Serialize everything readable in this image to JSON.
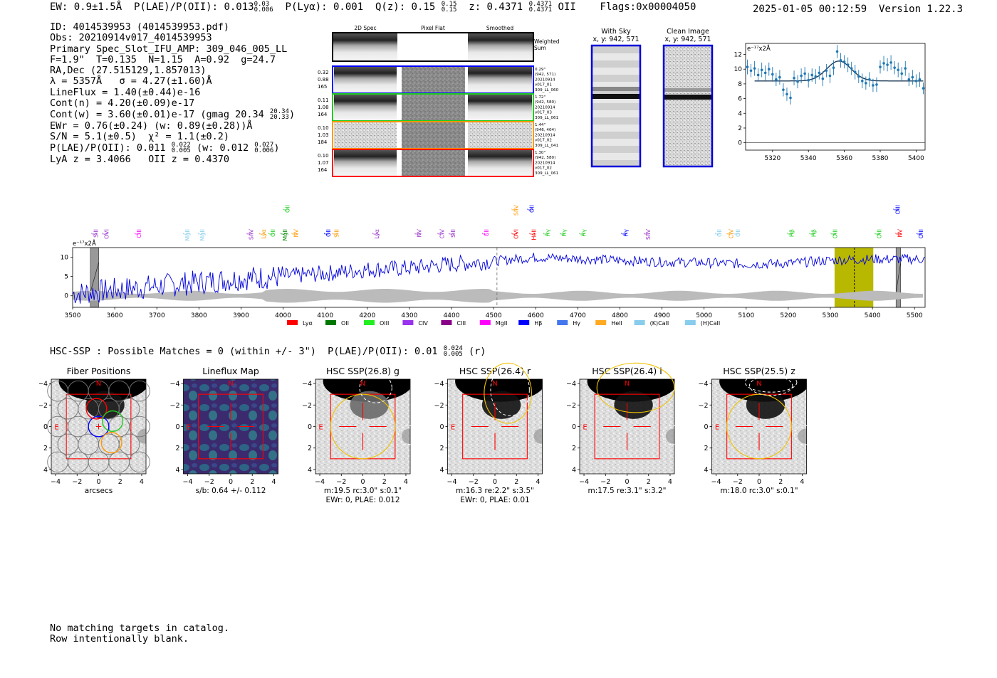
{
  "header": {
    "ew": "EW: 0.9±1.5Å",
    "plae": "P(LAE)/P(OII): 0.013",
    "plae_hi": "0.03",
    "plae_lo": "0.006",
    "plya": "P(Lyα): 0.001",
    "qz": "Q(z): 0.15",
    "qz_hi": "0.15",
    "qz_lo": "0.15",
    "z": "z: 0.4371",
    "z_hi": "0.4371",
    "z_lo": "0.4371",
    "z_line": "OII",
    "flags": "Flags:0x00004050",
    "datetime": "2025-01-05 00:12:59",
    "version": "Version 1.22.3"
  },
  "info": {
    "id": "ID: 4014539953 (4014539953.pdf)",
    "obs": "Obs: 20210914v017_4014539953",
    "primary": "Primary Spec_Slot_IFU_AMP: 309_046_005_LL",
    "params": "F=1.9\"  T=0.135  N=1.15  A=0.92  g=24.7",
    "radec": "RA,Dec (27.515129,1.857013)",
    "lambda": "λ = 5357Å   σ = 4.27(±1.60)Å",
    "lineflux": "LineFlux = 1.40(±0.44)e-16",
    "contn": "Cont(n) = 4.20(±0.09)e-17",
    "contw": "Cont(w) = 3.60(±0.01)e-17 (gmag 20.34",
    "gmag_hi": "20.34",
    "gmag_lo": "20.33",
    "ewr": "EWr = 0.76(±0.24) (w: 0.89(±0.28))Å",
    "sn": "S/N = 5.1(±0.5)  χ² = 1.1(±0.2)",
    "plae2": "P(LAE)/P(OII): 0.011",
    "plae2_hi": "0.022",
    "plae2_lo": "0.005",
    "plae2_w": "(w: 0.012",
    "plae2_w_hi": "0.027",
    "plae2_w_lo": "0.006",
    "lya_z": "LyA z = 3.4066   OII z = 0.4370"
  },
  "cutouts": {
    "col_headers": [
      "2D Spec",
      "Pixel Flat",
      "Smoothed"
    ],
    "weighted_sum": [
      "Weighted",
      "Sum"
    ],
    "rows": [
      {
        "color": "#0000ff",
        "left": [
          "0.32",
          "0.88",
          "165"
        ],
        "right": [
          "0.29\"",
          "(942, 571)",
          "20210914",
          "v017_01",
          "309_LL_060"
        ]
      },
      {
        "color": "#22cc22",
        "left": [
          "0.11",
          "1.08",
          "164"
        ],
        "right": [
          "1.72\"",
          "(942, 580)",
          "20210914",
          "v017_03",
          "309_LL_061"
        ]
      },
      {
        "color": "#ff9900",
        "left": [
          "0.10",
          "1.03",
          "184"
        ],
        "right": [
          "1.44\"",
          "(946, 404)",
          "20210914",
          "v017_02",
          "309_LL_041"
        ]
      },
      {
        "color": "#ff0000",
        "left": [
          "0.10",
          "1.07",
          "164"
        ],
        "right": [
          "1.30\"",
          "(942, 580)",
          "20210914",
          "v017_02",
          "309_LL_061"
        ]
      }
    ],
    "with_sky": [
      "With Sky",
      "x, y: 942, 571"
    ],
    "clean_image": [
      "Clean Image",
      "x, y: 942, 571"
    ]
  },
  "zoom_chart": {
    "type": "scatter",
    "ylabel": "e⁻¹⁷x2Å",
    "xlim": [
      5305,
      5405
    ],
    "ylim": [
      -1,
      13.5
    ],
    "xticks": [
      5320,
      5340,
      5360,
      5380,
      5400
    ],
    "yticks": [
      0,
      2,
      4,
      6,
      8,
      10,
      12
    ],
    "x": [
      5306,
      5308,
      5310,
      5312,
      5314,
      5316,
      5318,
      5320,
      5322,
      5324,
      5326,
      5328,
      5330,
      5332,
      5334,
      5336,
      5338,
      5340,
      5342,
      5344,
      5346,
      5348,
      5350,
      5352,
      5354,
      5356,
      5358,
      5360,
      5362,
      5364,
      5366,
      5368,
      5370,
      5372,
      5374,
      5376,
      5378,
      5380,
      5382,
      5384,
      5386,
      5388,
      5390,
      5392,
      5394,
      5396,
      5398,
      5400,
      5402,
      5404
    ],
    "y": [
      10.3,
      9.8,
      10.1,
      9.2,
      9.9,
      9.5,
      10.0,
      9.3,
      8.6,
      8.9,
      7.2,
      6.6,
      6.1,
      8.8,
      8.3,
      9.1,
      9.4,
      8.5,
      9.2,
      9.0,
      9.5,
      8.7,
      9.8,
      9.1,
      10.2,
      12.4,
      11.2,
      11.0,
      10.6,
      10.1,
      9.6,
      9.0,
      8.4,
      8.1,
      8.6,
      7.8,
      7.9,
      10.3,
      10.8,
      10.6,
      10.9,
      10.2,
      9.9,
      9.4,
      10.1,
      8.6,
      8.9,
      8.4,
      8.6,
      7.4
    ],
    "err": [
      1.0,
      0.9,
      1.0,
      0.9,
      1.0,
      1.0,
      0.9,
      1.0,
      0.9,
      1.0,
      0.9,
      0.9,
      0.9,
      1.0,
      0.9,
      1.0,
      0.9,
      1.0,
      0.9,
      1.0,
      0.9,
      1.0,
      0.9,
      1.0,
      1.0,
      0.9,
      1.0,
      0.9,
      1.0,
      0.9,
      1.0,
      0.9,
      1.0,
      0.9,
      1.0,
      0.9,
      1.0,
      0.9,
      1.0,
      0.9,
      1.0,
      0.9,
      1.0,
      0.9,
      1.0,
      0.9,
      1.0,
      0.9,
      1.0,
      0.8
    ],
    "fit": {
      "continuum": 8.4,
      "peak": 11.1,
      "center": 5357,
      "sigma": 4.27,
      "x_start": 5310,
      "x_end": 5404
    }
  },
  "full_chart": {
    "type": "line",
    "ylabel": "e⁻¹⁷x2Å",
    "xlim": [
      3500,
      5525
    ],
    "ylim": [
      -3,
      12.5
    ],
    "xticks": [
      3500,
      3600,
      3700,
      3800,
      3900,
      4000,
      4100,
      4200,
      4300,
      4400,
      4500,
      4600,
      4700,
      4800,
      4900,
      5000,
      5100,
      5200,
      5300,
      5400,
      5500
    ],
    "yticks": [
      0,
      5,
      10
    ],
    "series_color": "#0000dd",
    "seed": 7,
    "points": [
      [
        3500,
        0.5
      ],
      [
        3600,
        1.5
      ],
      [
        3700,
        2.5
      ],
      [
        3800,
        3.5
      ],
      [
        3900,
        4.5
      ],
      [
        4000,
        5.0
      ],
      [
        4100,
        5.8
      ],
      [
        4200,
        6.8
      ],
      [
        4300,
        7.2
      ],
      [
        4400,
        8.2
      ],
      [
        4500,
        9.0
      ],
      [
        4600,
        10.0
      ],
      [
        4700,
        9.6
      ],
      [
        4800,
        9.2
      ],
      [
        4900,
        8.8
      ],
      [
        5000,
        8.6
      ],
      [
        5100,
        8.2
      ],
      [
        5200,
        8.4
      ],
      [
        5300,
        9.2
      ],
      [
        5400,
        9.5
      ],
      [
        5525,
        9.5
      ]
    ],
    "highlight": [
      5310,
      5402
    ],
    "highlight_center": 5357,
    "dashed_line": 4508,
    "masked": [
      [
        3542,
        3562
      ],
      [
        5456,
        5467
      ]
    ],
    "lines": [
      {
        "label": "SiII",
        "x": 3555,
        "color": "#9933cc",
        "row": 0
      },
      {
        "label": "OVI",
        "x": 3580,
        "color": "#9933cc",
        "row": 0
      },
      {
        "label": "CIII",
        "x": 3657,
        "color": "#ff00ff",
        "row": 0
      },
      {
        "label": "MgII",
        "x": 3772,
        "color": "#87ceeb",
        "row": 0
      },
      {
        "label": "MgII",
        "x": 3808,
        "color": "#87ceeb",
        "row": 0
      },
      {
        "label": "SiIV",
        "x": 3924,
        "color": "#9933cc",
        "row": 0
      },
      {
        "label": "Lyα",
        "x": 3953,
        "color": "#ff9900",
        "row": 0
      },
      {
        "label": "OII",
        "x": 3975,
        "color": "#22cc22",
        "row": 0
      },
      {
        "label": "MgII",
        "x": 4004,
        "color": "#008800",
        "row": 0
      },
      {
        "label": "NV",
        "x": 4030,
        "color": "#ff9900",
        "row": 0
      },
      {
        "label": "OII",
        "x": 4010,
        "color": "#22cc22",
        "row": 1
      },
      {
        "label": "OII",
        "x": 4107,
        "color": "#0000ff",
        "row": 0
      },
      {
        "label": "SiII",
        "x": 4127,
        "color": "#ff9900",
        "row": 0
      },
      {
        "label": "Lyα",
        "x": 4222,
        "color": "#9933cc",
        "row": 0
      },
      {
        "label": "NV",
        "x": 4323,
        "color": "#9933cc",
        "row": 0
      },
      {
        "label": "CIV",
        "x": 4377,
        "color": "#9933cc",
        "row": 0
      },
      {
        "label": "SiII",
        "x": 4403,
        "color": "#9933cc",
        "row": 0
      },
      {
        "label": "CII",
        "x": 4483,
        "color": "#ff00ff",
        "row": 0
      },
      {
        "label": "OVI",
        "x": 4553,
        "color": "#ff0000",
        "row": 0
      },
      {
        "label": "SiIV",
        "x": 4553,
        "color": "#ff9900",
        "row": 1
      },
      {
        "label": "OII",
        "x": 4590,
        "color": "#0000ff",
        "row": 1
      },
      {
        "label": "HeII",
        "x": 4595,
        "color": "#ff0000",
        "row": 0
      },
      {
        "label": "Hγ",
        "x": 4628,
        "color": "#22cc22",
        "row": 0
      },
      {
        "label": "Hγ",
        "x": 4667,
        "color": "#22cc22",
        "row": 0
      },
      {
        "label": "Hγ",
        "x": 4714,
        "color": "#22cc22",
        "row": 0
      },
      {
        "label": "Hγ",
        "x": 4814,
        "color": "#0000ff",
        "row": 0
      },
      {
        "label": "SiIV",
        "x": 4867,
        "color": "#9933cc",
        "row": 0
      },
      {
        "label": "OII",
        "x": 5036,
        "color": "#87ceeb",
        "row": 0
      },
      {
        "label": "CIV",
        "x": 5064,
        "color": "#ff9900",
        "row": 0
      },
      {
        "label": "OII",
        "x": 5080,
        "color": "#87ceeb",
        "row": 0
      },
      {
        "label": "Hβ",
        "x": 5208,
        "color": "#22cc22",
        "row": 0
      },
      {
        "label": "Hβ",
        "x": 5260,
        "color": "#22cc22",
        "row": 0
      },
      {
        "label": "OIII",
        "x": 5311,
        "color": "#22cc22",
        "row": 0
      },
      {
        "label": "OIII",
        "x": 5416,
        "color": "#22cc22",
        "row": 0
      },
      {
        "label": "NV",
        "x": 5465,
        "color": "#ff0000",
        "row": 0
      },
      {
        "label": "OIII",
        "x": 5460,
        "color": "#0000ff",
        "row": 1
      },
      {
        "label": "OIII",
        "x": 5515,
        "color": "#0000ff",
        "row": 0
      }
    ],
    "legend": [
      {
        "label": "Lyα",
        "color": "#ff0000"
      },
      {
        "label": "OII",
        "color": "#007700"
      },
      {
        "label": "OIII",
        "color": "#22ee22"
      },
      {
        "label": "CIV",
        "color": "#9933ee"
      },
      {
        "label": "CIII",
        "color": "#880088"
      },
      {
        "label": "MgII",
        "color": "#ff00ff"
      },
      {
        "label": "Hβ",
        "color": "#0000ff"
      },
      {
        "label": "Hγ",
        "color": "#4477ee"
      },
      {
        "label": "HeII",
        "color": "#ffaa22"
      },
      {
        "label": "(K)CaII",
        "color": "#88ccee"
      },
      {
        "label": "(H)CaII",
        "color": "#88ccee"
      }
    ]
  },
  "hsc": {
    "summary": "HSC-SSP : Possible Matches = 0 (within +/- 3\")  P(LAE)/P(OII): 0.01",
    "summary_hi": "0.024",
    "summary_lo": "0.005",
    "summary_suffix": "(r)",
    "axis_ticks": [
      "−4",
      "−2",
      "0",
      "2",
      "4"
    ],
    "north": "N",
    "east": "E",
    "panels": [
      {
        "title": "Fiber Positions",
        "caption": [
          "arcsecs"
        ],
        "kind": "fiber"
      },
      {
        "title": "Lineflux Map",
        "caption": [
          "s/b: 0.64 +/- 0.112"
        ],
        "kind": "flux"
      },
      {
        "title": "HSC SSP(26.8) g",
        "caption": [
          "m:19.5 rc:3.0\"  s:0.1\"",
          "EWr: 0, PLAE: 0.012"
        ],
        "kind": "g"
      },
      {
        "title": "HSC SSP(26.4) r",
        "caption": [
          "m:16.3  re:2.2\"  s:3.5\"",
          "EWr: 0, PLAE: 0.01"
        ],
        "kind": "r"
      },
      {
        "title": "HSC SSP(26.4) i",
        "caption": [
          "m:17.5  re:3.1\"  s:3.2\""
        ],
        "kind": "i"
      },
      {
        "title": "HSC SSP(25.5) z",
        "caption": [
          "m:18.0 rc:3.0\"  s:0.1\""
        ],
        "kind": "z"
      }
    ]
  },
  "footer": {
    "line1": "No matching targets in catalog.",
    "line2": "Row intentionally blank."
  }
}
